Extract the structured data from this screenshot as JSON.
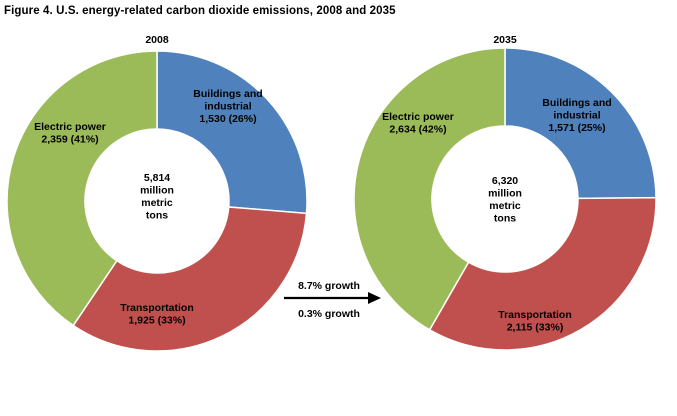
{
  "title": "Figure 4. U.S. energy-related carbon dioxide emissions, 2008 and 2035",
  "colors": {
    "buildings": "#4F81BD",
    "transportation": "#C0504D",
    "electric": "#9BBB59",
    "slice_border": "#FFFFFF"
  },
  "arrow": {
    "growth_top": "8.7% growth",
    "growth_bottom": "0.3% growth"
  },
  "chart_data": [
    {
      "type": "pie",
      "title": "2008",
      "center_label": [
        "5,814",
        "million",
        "metric",
        "tons"
      ],
      "total": 5814,
      "slices": [
        {
          "key": "buildings",
          "label": [
            "Buildings and",
            "industrial",
            "1,530 (26%)"
          ],
          "value": 1530,
          "percent": 26
        },
        {
          "key": "transportation",
          "label": [
            "Transportation",
            "1,925 (33%)"
          ],
          "value": 1925,
          "percent": 33
        },
        {
          "key": "electric",
          "label": [
            "Electric power",
            "2,359 (41%)"
          ],
          "value": 2359,
          "percent": 41
        }
      ]
    },
    {
      "type": "pie",
      "title": "2035",
      "center_label": [
        "6,320",
        "million",
        "metric",
        "tons"
      ],
      "total": 6320,
      "slices": [
        {
          "key": "buildings",
          "label": [
            "Buildings and",
            "industrial",
            "1,571 (25%)"
          ],
          "value": 1571,
          "percent": 25
        },
        {
          "key": "transportation",
          "label": [
            "Transportation",
            "2,115 (33%)"
          ],
          "value": 2115,
          "percent": 33
        },
        {
          "key": "electric",
          "label": [
            "Electric power",
            "2,634 (42%)"
          ],
          "value": 2634,
          "percent": 42
        }
      ]
    }
  ]
}
